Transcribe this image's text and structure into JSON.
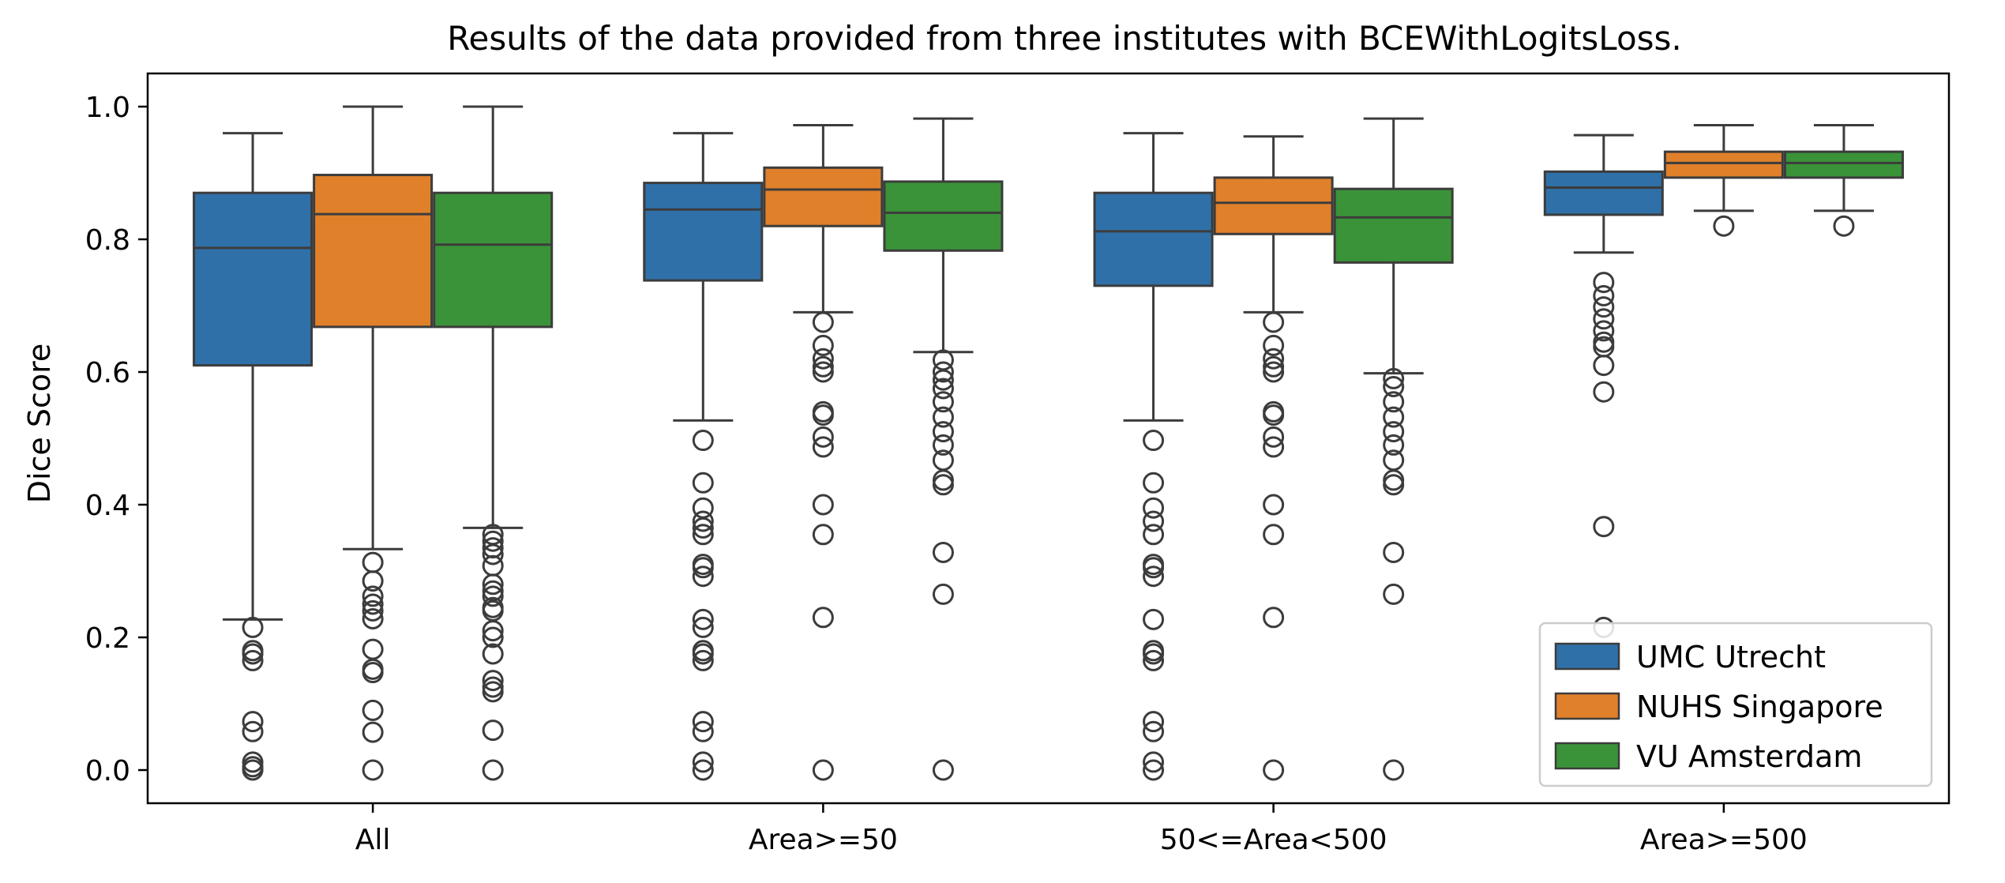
{
  "chart_data": {
    "type": "box",
    "title": "Results of the data provided from three institutes with BCEWithLogitsLoss.",
    "xlabel": "",
    "ylabel": "Dice Score",
    "ylim": [
      -0.05,
      1.05
    ],
    "yticks": [
      "0.0",
      "0.2",
      "0.4",
      "0.6",
      "0.8",
      "1.0"
    ],
    "categories": [
      "All",
      "Area>=50",
      "50<=Area<500",
      "Area>=500"
    ],
    "legend_position": "lower-right",
    "grid": false,
    "series": [
      {
        "name": "UMC Utrecht",
        "color": "#2f70a8",
        "boxes": [
          {
            "q1": 0.61,
            "median": 0.787,
            "q3": 0.87,
            "whisker_low": 0.227,
            "whisker_high": 0.96,
            "outliers": [
              0.215,
              0.18,
              0.175,
              0.165,
              0.073,
              0.058,
              0.012,
              0.005,
              0.0
            ]
          },
          {
            "q1": 0.738,
            "median": 0.845,
            "q3": 0.885,
            "whisker_low": 0.527,
            "whisker_high": 0.96,
            "outliers": [
              0.497,
              0.433,
              0.395,
              0.375,
              0.365,
              0.355,
              0.31,
              0.305,
              0.292,
              0.227,
              0.215,
              0.18,
              0.175,
              0.165,
              0.073,
              0.058,
              0.012,
              0.0
            ]
          },
          {
            "q1": 0.73,
            "median": 0.812,
            "q3": 0.87,
            "whisker_low": 0.527,
            "whisker_high": 0.96,
            "outliers": [
              0.497,
              0.433,
              0.395,
              0.375,
              0.355,
              0.31,
              0.305,
              0.292,
              0.227,
              0.18,
              0.175,
              0.165,
              0.073,
              0.058,
              0.012,
              0.0
            ]
          },
          {
            "q1": 0.837,
            "median": 0.878,
            "q3": 0.902,
            "whisker_low": 0.78,
            "whisker_high": 0.957,
            "outliers": [
              0.735,
              0.715,
              0.698,
              0.68,
              0.662,
              0.645,
              0.638,
              0.61,
              0.57,
              0.367,
              0.215
            ]
          }
        ]
      },
      {
        "name": "NUHS Singapore",
        "color": "#e0802b",
        "boxes": [
          {
            "q1": 0.668,
            "median": 0.838,
            "q3": 0.897,
            "whisker_low": 0.333,
            "whisker_high": 1.0,
            "outliers": [
              0.313,
              0.285,
              0.262,
              0.25,
              0.24,
              0.228,
              0.182,
              0.152,
              0.147,
              0.09,
              0.057,
              0.0
            ]
          },
          {
            "q1": 0.82,
            "median": 0.875,
            "q3": 0.908,
            "whisker_low": 0.69,
            "whisker_high": 0.972,
            "outliers": [
              0.675,
              0.64,
              0.62,
              0.608,
              0.6,
              0.54,
              0.535,
              0.502,
              0.487,
              0.4,
              0.355,
              0.23,
              0.0
            ]
          },
          {
            "q1": 0.808,
            "median": 0.855,
            "q3": 0.893,
            "whisker_low": 0.69,
            "whisker_high": 0.955,
            "outliers": [
              0.675,
              0.64,
              0.62,
              0.608,
              0.6,
              0.54,
              0.535,
              0.502,
              0.487,
              0.4,
              0.355,
              0.23,
              0.0
            ]
          },
          {
            "q1": 0.893,
            "median": 0.915,
            "q3": 0.932,
            "whisker_low": 0.843,
            "whisker_high": 0.972,
            "outliers": [
              0.82
            ]
          }
        ]
      },
      {
        "name": "VU Amsterdam",
        "color": "#3a9338",
        "boxes": [
          {
            "q1": 0.668,
            "median": 0.792,
            "q3": 0.87,
            "whisker_low": 0.365,
            "whisker_high": 1.0,
            "outliers": [
              0.355,
              0.345,
              0.335,
              0.325,
              0.308,
              0.28,
              0.27,
              0.262,
              0.245,
              0.24,
              0.21,
              0.2,
              0.175,
              0.135,
              0.125,
              0.118,
              0.06,
              0.0
            ]
          },
          {
            "q1": 0.783,
            "median": 0.84,
            "q3": 0.887,
            "whisker_low": 0.63,
            "whisker_high": 0.982,
            "outliers": [
              0.618,
              0.6,
              0.588,
              0.575,
              0.555,
              0.532,
              0.51,
              0.49,
              0.467,
              0.437,
              0.43,
              0.328,
              0.265,
              0.0
            ]
          },
          {
            "q1": 0.765,
            "median": 0.833,
            "q3": 0.876,
            "whisker_low": 0.598,
            "whisker_high": 0.982,
            "outliers": [
              0.59,
              0.578,
              0.555,
              0.532,
              0.51,
              0.49,
              0.467,
              0.437,
              0.43,
              0.328,
              0.265,
              0.0
            ]
          },
          {
            "q1": 0.893,
            "median": 0.915,
            "q3": 0.932,
            "whisker_low": 0.843,
            "whisker_high": 0.972,
            "outliers": [
              0.82
            ]
          }
        ]
      }
    ]
  }
}
